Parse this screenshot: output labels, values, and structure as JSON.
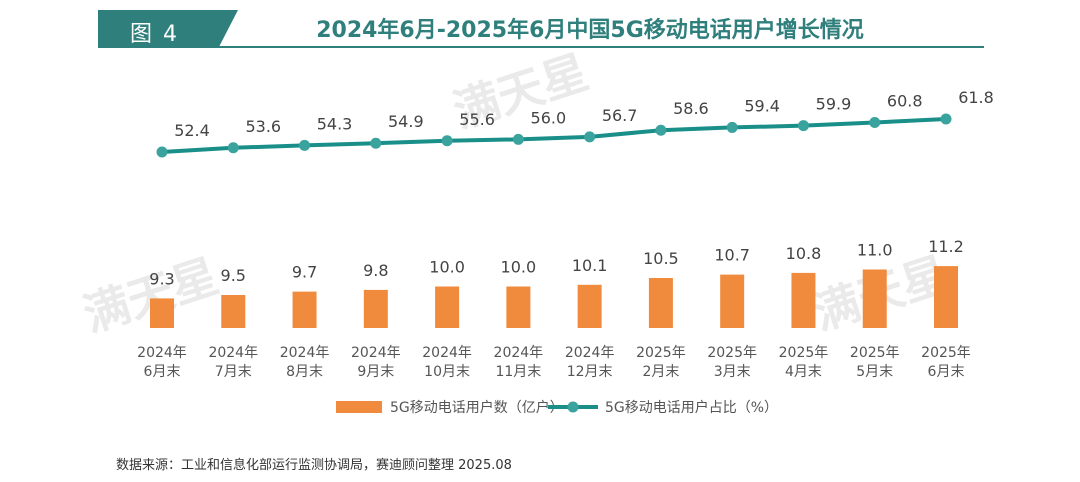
{
  "header": {
    "figure_tag": "图 4",
    "title": "2024年6月-2025年6月中国5G移动电话用户增长情况"
  },
  "watermark": "满天星",
  "source": "数据来源：工业和信息化部运行监测协调局，赛迪顾问整理 2025.08",
  "colors": {
    "bar": "#f08a3c",
    "line": "#1a8f8a",
    "accent": "#2f7f7c"
  },
  "chart_data": {
    "type": "bar+line",
    "title": "2024年6月-2025年6月中国5G移动电话用户增长情况",
    "categories": [
      [
        "2024年",
        "6月末"
      ],
      [
        "2024年",
        "7月末"
      ],
      [
        "2024年",
        "8月末"
      ],
      [
        "2024年",
        "9月末"
      ],
      [
        "2024年",
        "10月末"
      ],
      [
        "2024年",
        "11月末"
      ],
      [
        "2024年",
        "12月末"
      ],
      [
        "2025年",
        "2月末"
      ],
      [
        "2025年",
        "3月末"
      ],
      [
        "2025年",
        "4月末"
      ],
      [
        "2025年",
        "5月末"
      ],
      [
        "2025年",
        "6月末"
      ]
    ],
    "series": [
      {
        "name": "5G移动电话用户数（亿户）",
        "type": "bar",
        "values": [
          9.3,
          9.5,
          9.7,
          9.8,
          10.0,
          10.0,
          10.1,
          10.5,
          10.7,
          10.8,
          11.0,
          11.2
        ],
        "labels": [
          "9.3",
          "9.5",
          "9.7",
          "9.8",
          "10.0",
          "10.0",
          "10.1",
          "10.5",
          "10.7",
          "10.8",
          "11.0",
          "11.2"
        ]
      },
      {
        "name": "5G移动电话用户占比（%）",
        "type": "line",
        "values": [
          52.4,
          53.6,
          54.3,
          54.9,
          55.6,
          56.0,
          56.7,
          58.6,
          59.4,
          59.9,
          60.8,
          61.8
        ],
        "labels": [
          "52.4",
          "53.6",
          "54.3",
          "54.9",
          "55.6",
          "56.0",
          "56.7",
          "58.6",
          "59.4",
          "59.9",
          "60.8",
          "61.8"
        ]
      }
    ],
    "legend": {
      "placement": "bottom-center"
    },
    "grid": false,
    "y_axis_visible": false
  }
}
